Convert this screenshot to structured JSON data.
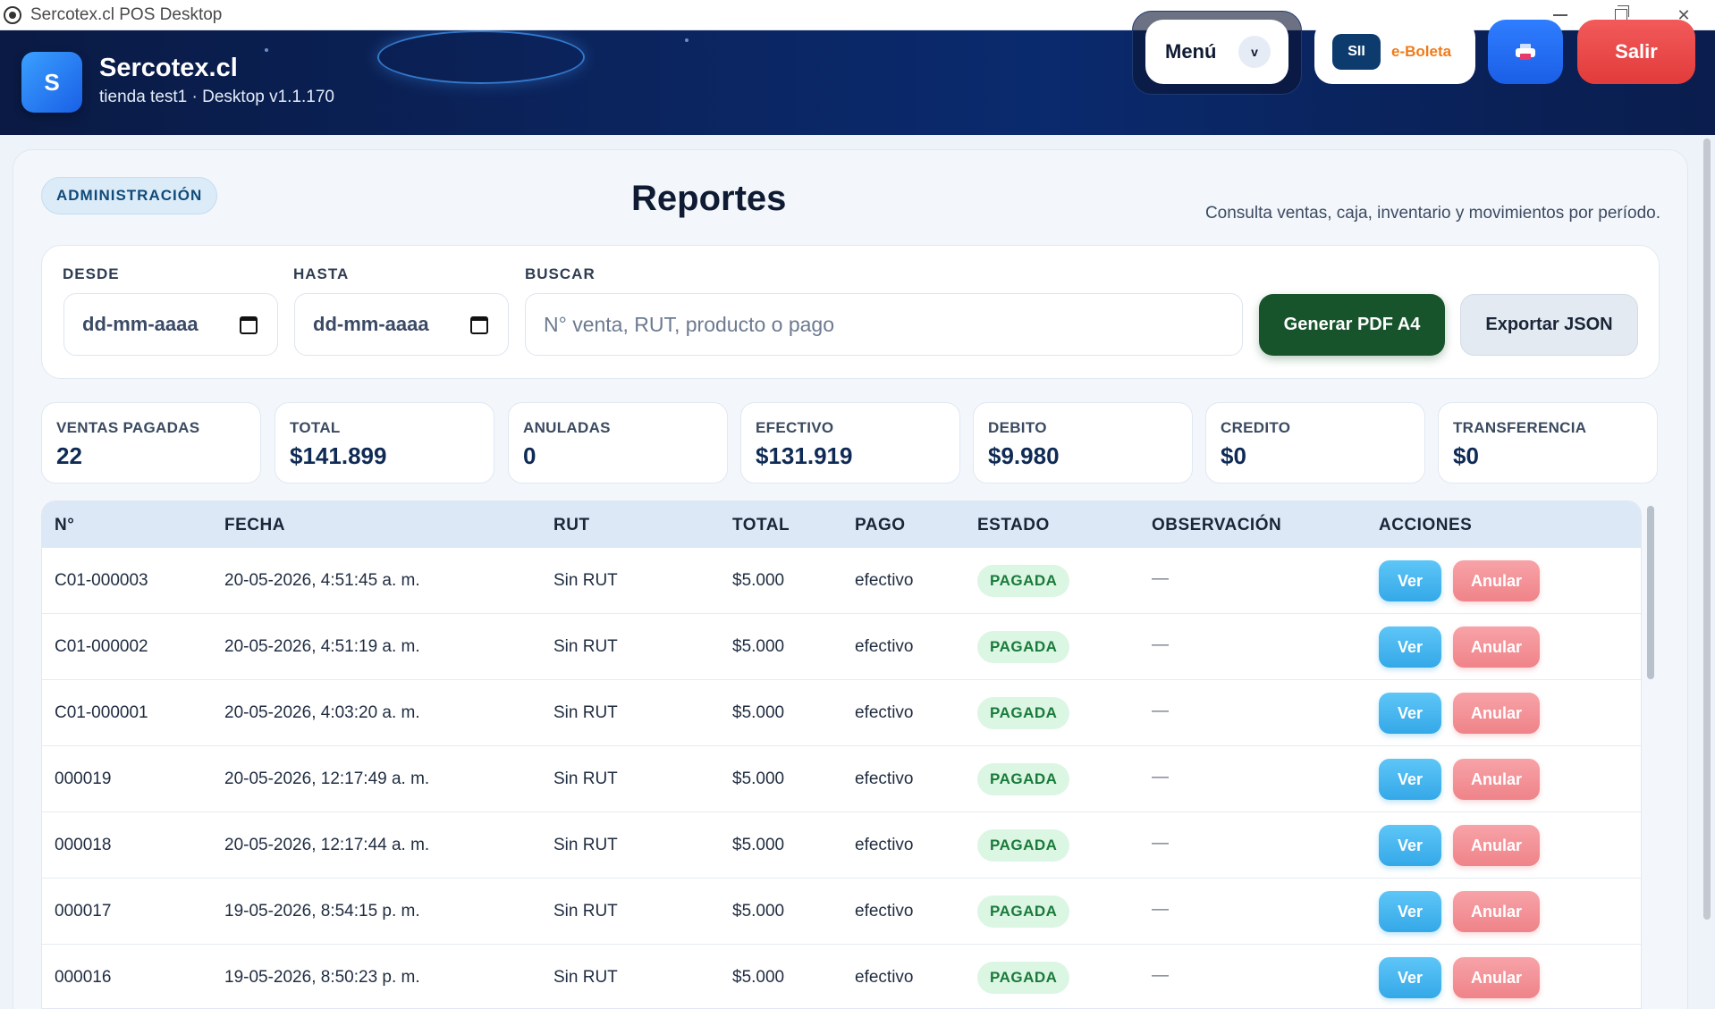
{
  "window": {
    "title": "Sercotex.cl POS Desktop"
  },
  "header": {
    "logo_letter": "S",
    "brand_name": "Sercotex.cl",
    "brand_sub": "tienda test1 · Desktop v1.1.170",
    "menu_label": "Menú",
    "menu_chevron": "v",
    "sii_label": "SII",
    "eboleta_label": "e-Boleta",
    "logout_label": "Salir"
  },
  "page": {
    "badge": "ADMINISTRACIÓN",
    "title": "Reportes",
    "description": "Consulta ventas, caja, inventario y movimientos por período."
  },
  "filters": {
    "from_label": "DESDE",
    "from_value": "dd-mm-aaaa",
    "to_label": "HASTA",
    "to_value": "dd-mm-aaaa",
    "search_label": "BUSCAR",
    "search_placeholder": "N° venta, RUT, producto o pago",
    "pdf_button": "Generar PDF A4",
    "json_button": "Exportar JSON"
  },
  "stats": [
    {
      "label": "VENTAS PAGADAS",
      "value": "22"
    },
    {
      "label": "TOTAL",
      "value": "$141.899"
    },
    {
      "label": "ANULADAS",
      "value": "0"
    },
    {
      "label": "EFECTIVO",
      "value": "$131.919"
    },
    {
      "label": "DEBITO",
      "value": "$9.980"
    },
    {
      "label": "CREDITO",
      "value": "$0"
    },
    {
      "label": "TRANSFERENCIA",
      "value": "$0"
    }
  ],
  "table": {
    "headers": [
      "N°",
      "FECHA",
      "RUT",
      "TOTAL",
      "PAGO",
      "ESTADO",
      "OBSERVACIÓN",
      "ACCIONES"
    ],
    "view_label": "Ver",
    "cancel_label": "Anular",
    "rows": [
      {
        "num": "C01-000003",
        "date": "20-05-2026, 4:51:45 a. m.",
        "rut": "Sin RUT",
        "total": "$5.000",
        "payment": "efectivo",
        "status": "PAGADA",
        "note": "—"
      },
      {
        "num": "C01-000002",
        "date": "20-05-2026, 4:51:19 a. m.",
        "rut": "Sin RUT",
        "total": "$5.000",
        "payment": "efectivo",
        "status": "PAGADA",
        "note": "—"
      },
      {
        "num": "C01-000001",
        "date": "20-05-2026, 4:03:20 a. m.",
        "rut": "Sin RUT",
        "total": "$5.000",
        "payment": "efectivo",
        "status": "PAGADA",
        "note": "—"
      },
      {
        "num": "000019",
        "date": "20-05-2026, 12:17:49 a. m.",
        "rut": "Sin RUT",
        "total": "$5.000",
        "payment": "efectivo",
        "status": "PAGADA",
        "note": "—"
      },
      {
        "num": "000018",
        "date": "20-05-2026, 12:17:44 a. m.",
        "rut": "Sin RUT",
        "total": "$5.000",
        "payment": "efectivo",
        "status": "PAGADA",
        "note": "—"
      },
      {
        "num": "000017",
        "date": "19-05-2026, 8:54:15 p. m.",
        "rut": "Sin RUT",
        "total": "$5.000",
        "payment": "efectivo",
        "status": "PAGADA",
        "note": "—"
      },
      {
        "num": "000016",
        "date": "19-05-2026, 8:50:23 p. m.",
        "rut": "Sin RUT",
        "total": "$5.000",
        "payment": "efectivo",
        "status": "PAGADA",
        "note": "—"
      }
    ]
  },
  "colors": {
    "header_bg": "#0b2560",
    "pdf_button": "#17542b",
    "logout_button": "#e23b3b",
    "status_paid": "#1a7a3a",
    "view_button": "#34a8e8",
    "cancel_button": "#ef8389"
  }
}
